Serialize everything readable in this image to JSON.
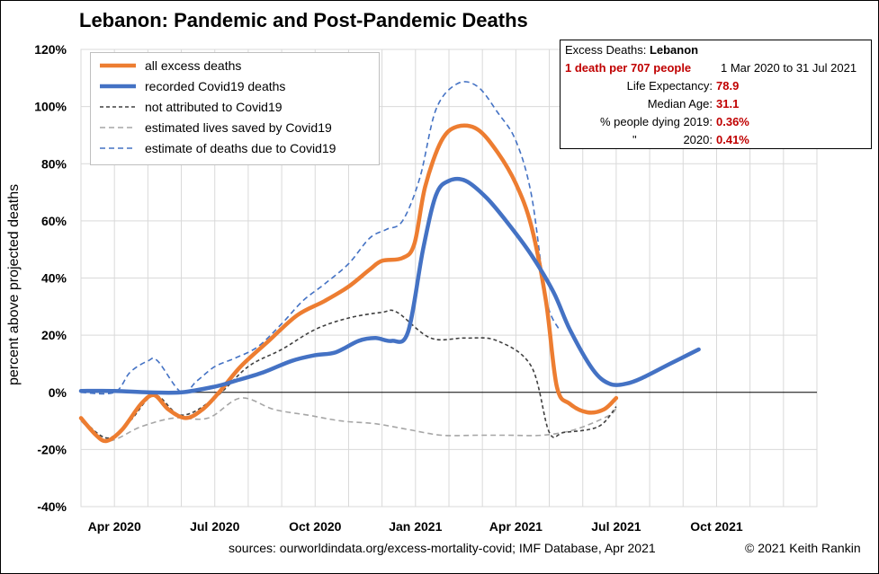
{
  "chart_data": {
    "type": "line",
    "title_country": "Lebanon",
    "title_rest": ": Pandemic and Post-Pandemic Deaths",
    "xlabel": "",
    "ylabel": "percent above projected deaths",
    "x_tick_labels": [
      "Apr 2020",
      "Jul 2020",
      "Oct 2020",
      "Jan 2021",
      "Apr 2021",
      "Jul 2021",
      "Oct 2021"
    ],
    "y_tick_labels": [
      "120%",
      "100%",
      "80%",
      "60%",
      "40%",
      "20%",
      "0%",
      "-20%",
      "-40%"
    ],
    "ylim": [
      -40,
      120
    ],
    "x_range_months": [
      "2020-03",
      "2021-12"
    ],
    "grid": true,
    "legend_position": "top-left",
    "series": [
      {
        "name": "all excess deaths",
        "color": "#ed7d31",
        "style": "solid-thick",
        "points": [
          [
            "2020-03-01",
            -9
          ],
          [
            "2020-03-15",
            -15
          ],
          [
            "2020-03-25",
            -17
          ],
          [
            "2020-04-08",
            -13
          ],
          [
            "2020-04-25",
            -4
          ],
          [
            "2020-05-07",
            -1
          ],
          [
            "2020-05-20",
            -6
          ],
          [
            "2020-06-05",
            -9
          ],
          [
            "2020-06-20",
            -6
          ],
          [
            "2020-07-05",
            0
          ],
          [
            "2020-07-25",
            9
          ],
          [
            "2020-08-20",
            18
          ],
          [
            "2020-09-15",
            27
          ],
          [
            "2020-10-10",
            32
          ],
          [
            "2020-11-01",
            37
          ],
          [
            "2020-11-20",
            43
          ],
          [
            "2020-12-01",
            46
          ],
          [
            "2020-12-20",
            47
          ],
          [
            "2020-12-31",
            52
          ],
          [
            "2021-01-10",
            72
          ],
          [
            "2021-01-25",
            88
          ],
          [
            "2021-02-08",
            93
          ],
          [
            "2021-02-25",
            92
          ],
          [
            "2021-03-15",
            84
          ],
          [
            "2021-04-01",
            73
          ],
          [
            "2021-04-15",
            58
          ],
          [
            "2021-04-28",
            32
          ],
          [
            "2021-05-08",
            2
          ],
          [
            "2021-05-20",
            -4
          ],
          [
            "2021-06-05",
            -7
          ],
          [
            "2021-06-20",
            -6
          ],
          [
            "2021-07-01",
            -2
          ]
        ]
      },
      {
        "name": "recorded Covid19 deaths",
        "color": "#4472c4",
        "style": "solid-thick",
        "points": [
          [
            "2020-03-01",
            0.5
          ],
          [
            "2020-04-01",
            0.5
          ],
          [
            "2020-05-01",
            0
          ],
          [
            "2020-06-01",
            0
          ],
          [
            "2020-07-01",
            2
          ],
          [
            "2020-07-20",
            4
          ],
          [
            "2020-08-15",
            7
          ],
          [
            "2020-09-10",
            11
          ],
          [
            "2020-10-01",
            13
          ],
          [
            "2020-10-20",
            14
          ],
          [
            "2020-11-10",
            18
          ],
          [
            "2020-11-25",
            19
          ],
          [
            "2020-12-10",
            18
          ],
          [
            "2020-12-25",
            21
          ],
          [
            "2021-01-08",
            50
          ],
          [
            "2021-01-20",
            69
          ],
          [
            "2021-02-01",
            74
          ],
          [
            "2021-02-15",
            74
          ],
          [
            "2021-03-05",
            68
          ],
          [
            "2021-03-25",
            59
          ],
          [
            "2021-04-15",
            48
          ],
          [
            "2021-05-05",
            35
          ],
          [
            "2021-05-20",
            22
          ],
          [
            "2021-06-10",
            8
          ],
          [
            "2021-06-25",
            3
          ],
          [
            "2021-07-10",
            3
          ],
          [
            "2021-07-25",
            5
          ],
          [
            "2021-08-20",
            10
          ],
          [
            "2021-09-15",
            15
          ]
        ]
      },
      {
        "name": "not attributed to Covid19",
        "color": "#404040",
        "style": "dash",
        "points": [
          [
            "2020-03-01",
            -9
          ],
          [
            "2020-03-25",
            -16
          ],
          [
            "2020-04-15",
            -10
          ],
          [
            "2020-05-07",
            -1
          ],
          [
            "2020-06-01",
            -8
          ],
          [
            "2020-07-01",
            -2
          ],
          [
            "2020-08-01",
            9
          ],
          [
            "2020-09-01",
            15
          ],
          [
            "2020-10-01",
            22
          ],
          [
            "2020-11-01",
            26
          ],
          [
            "2020-12-01",
            28
          ],
          [
            "2020-12-15",
            28
          ],
          [
            "2021-01-15",
            19
          ],
          [
            "2021-02-15",
            19
          ],
          [
            "2021-03-15",
            18
          ],
          [
            "2021-04-15",
            9
          ],
          [
            "2021-05-01",
            -14
          ],
          [
            "2021-05-15",
            -14
          ],
          [
            "2021-06-15",
            -12
          ],
          [
            "2021-07-01",
            -5
          ]
        ]
      },
      {
        "name": "estimated lives saved by Covid19",
        "color": "#a6a6a6",
        "style": "dash",
        "points": [
          [
            "2020-03-01",
            -10
          ],
          [
            "2020-03-25",
            -17
          ],
          [
            "2020-04-25",
            -12
          ],
          [
            "2020-05-25",
            -9
          ],
          [
            "2020-06-25",
            -9
          ],
          [
            "2020-07-25",
            -2
          ],
          [
            "2020-08-25",
            -6
          ],
          [
            "2020-09-25",
            -8
          ],
          [
            "2020-10-25",
            -10
          ],
          [
            "2020-11-25",
            -11
          ],
          [
            "2020-12-25",
            -13
          ],
          [
            "2021-01-25",
            -15
          ],
          [
            "2021-02-25",
            -15
          ],
          [
            "2021-03-25",
            -15
          ],
          [
            "2021-04-25",
            -15
          ],
          [
            "2021-05-25",
            -13
          ],
          [
            "2021-06-25",
            -8
          ],
          [
            "2021-07-01",
            -5
          ]
        ]
      },
      {
        "name": "estimate of deaths due to Covid19",
        "color": "#4472c4",
        "style": "dash",
        "points": [
          [
            "2020-03-01",
            0
          ],
          [
            "2020-04-01",
            0
          ],
          [
            "2020-04-15",
            7
          ],
          [
            "2020-05-01",
            11
          ],
          [
            "2020-05-10",
            11
          ],
          [
            "2020-06-01",
            0
          ],
          [
            "2020-06-15",
            4
          ],
          [
            "2020-07-01",
            9
          ],
          [
            "2020-07-20",
            12
          ],
          [
            "2020-08-10",
            16
          ],
          [
            "2020-09-01",
            24
          ],
          [
            "2020-09-20",
            32
          ],
          [
            "2020-10-10",
            38
          ],
          [
            "2020-11-01",
            45
          ],
          [
            "2020-11-20",
            54
          ],
          [
            "2020-12-05",
            57
          ],
          [
            "2020-12-20",
            60
          ],
          [
            "2021-01-05",
            75
          ],
          [
            "2021-01-20",
            99
          ],
          [
            "2021-02-08",
            108
          ],
          [
            "2021-02-25",
            107
          ],
          [
            "2021-03-15",
            98
          ],
          [
            "2021-04-01",
            88
          ],
          [
            "2021-04-15",
            69
          ],
          [
            "2021-04-28",
            33
          ],
          [
            "2021-05-10",
            22
          ]
        ]
      }
    ]
  },
  "infobox": {
    "heading_prefix": "Excess Deaths: ",
    "heading_country": "Lebanon",
    "rate": "1 death per 707 people",
    "period": "1 Mar 2020 to 31 Jul 2021",
    "life_expectancy_label": "Life Expectancy:",
    "life_expectancy_value": "78.9",
    "median_age_label": "Median Age:",
    "median_age_value": "31.1",
    "dying_2019_label": "% people dying 2019:",
    "dying_2019_value": "0.36%",
    "dying_2020_label_mark": "\"",
    "dying_2020_label_year": "2020:",
    "dying_2020_value": "0.41%"
  },
  "footer": {
    "sources": "sources:  ourworldindata.org/excess-mortality-covid;  IMF Database, Apr 2021",
    "copyright": "© 2021 Keith Rankin"
  }
}
